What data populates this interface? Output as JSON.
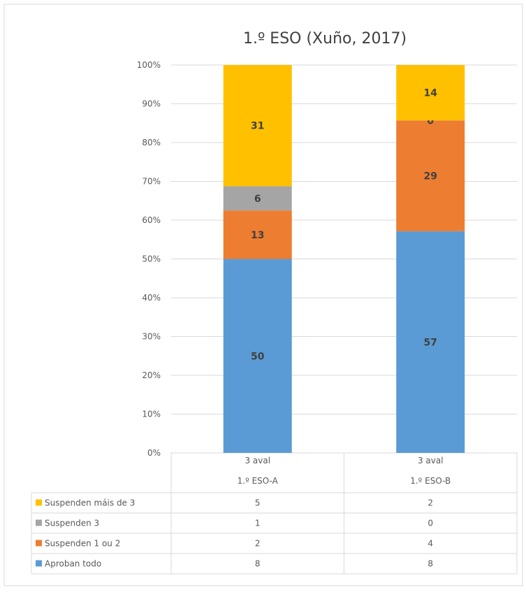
{
  "chart_data": {
    "type": "bar",
    "stacked": "percent",
    "title": "1.º ESO (Xuño, 2017)",
    "categories": [
      {
        "level1": "3 aval",
        "level2": "1.º ESO-A"
      },
      {
        "level1": "3 aval",
        "level2": "1.º ESO-B"
      }
    ],
    "ylim": [
      0,
      100
    ],
    "yticks": [
      "0%",
      "10%",
      "20%",
      "30%",
      "40%",
      "50%",
      "60%",
      "70%",
      "80%",
      "90%",
      "100%"
    ],
    "grid": true,
    "series": [
      {
        "name": "Aproban todo",
        "color": "#5B9BD5",
        "counts": [
          8,
          8
        ],
        "percent_labels": [
          50,
          57
        ]
      },
      {
        "name": "Suspenden 1 ou 2",
        "color": "#ED7D31",
        "counts": [
          2,
          4
        ],
        "percent_labels": [
          13,
          29
        ]
      },
      {
        "name": "Suspenden 3",
        "color": "#A5A5A5",
        "counts": [
          1,
          0
        ],
        "percent_labels": [
          6,
          0
        ]
      },
      {
        "name": "Suspenden máis de 3",
        "color": "#FFC000",
        "counts": [
          5,
          2
        ],
        "percent_labels": [
          31,
          14
        ]
      }
    ],
    "data_table_row_order": [
      "Suspenden máis de 3",
      "Suspenden 3",
      "Suspenden 1 ou 2",
      "Aproban todo"
    ]
  }
}
